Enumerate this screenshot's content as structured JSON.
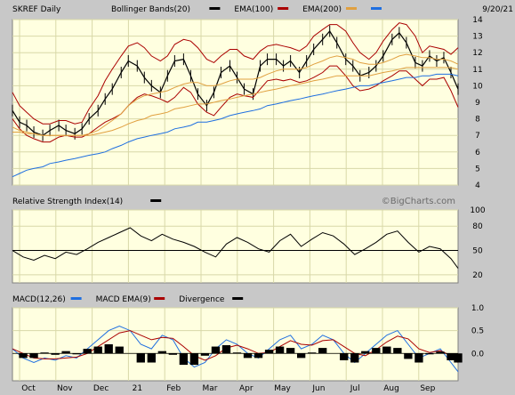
{
  "header": {
    "symbol": "SKREF Daily",
    "date": "9/20/21",
    "legend": [
      {
        "label": "Bollinger Bands(20)",
        "color": "#000000"
      },
      {
        "label": "EMA(100)",
        "color": "#aa0000"
      },
      {
        "label": "EMA(200)",
        "color": "#e0a040"
      },
      {
        "label": "",
        "color": "#1f6fe0"
      }
    ]
  },
  "watermark": "©BigCharts.com",
  "colors": {
    "plot_bg": "#ffffe0",
    "grid": "#d8d8a8",
    "price": "#000000",
    "bollinger": "#aa0000",
    "ema100": "#e0a040",
    "ema200": "#1f6fe0",
    "macd": "#1f6fe0",
    "macd_ema": "#aa0000",
    "divergence": "#000000"
  },
  "x_axis": {
    "labels": [
      "Oct",
      "Nov",
      "Dec",
      "21",
      "Feb",
      "Mar",
      "Apr",
      "May",
      "Jun",
      "Jul",
      "Aug",
      "Sep"
    ]
  },
  "chart_data": [
    {
      "type": "line",
      "panel": "price",
      "ylim": [
        4,
        14
      ],
      "yticks": [
        4,
        5,
        6,
        7,
        8,
        9,
        10,
        11,
        12,
        13,
        14
      ],
      "x": [
        0,
        4,
        8,
        12,
        17,
        21,
        26,
        30,
        35,
        39,
        43,
        48,
        52,
        56,
        61,
        65,
        70,
        74,
        78,
        83,
        87,
        91,
        96,
        100,
        104,
        109,
        113,
        117,
        122,
        126,
        130,
        135,
        139,
        143,
        148,
        152,
        156,
        161,
        165,
        169,
        174,
        178,
        182,
        187,
        191,
        195,
        200,
        204,
        208,
        213,
        217,
        221,
        226,
        230,
        234,
        238,
        242,
        246,
        250
      ],
      "series": [
        {
          "name": "",
          "values": [
            8.5,
            7.8,
            7.6,
            7.2,
            7.0,
            7.3,
            7.6,
            7.3,
            7.1,
            7.4,
            8.0,
            8.5,
            9.2,
            9.8,
            10.8,
            11.5,
            11.2,
            10.5,
            10.0,
            9.6,
            10.6,
            11.5,
            11.6,
            10.6,
            9.5,
            8.8,
            9.6,
            10.8,
            11.2,
            10.5,
            9.8,
            9.5,
            11.2,
            11.6,
            11.6,
            11.2,
            11.5,
            10.8,
            11.5,
            12.2,
            12.8,
            13.3,
            12.6,
            11.6,
            11.2,
            10.6,
            10.8,
            11.2,
            11.8,
            12.8,
            13.2,
            12.6,
            11.4,
            11.2,
            11.8,
            11.5,
            11.7,
            10.8,
            9.8
          ]
        },
        {
          "name": "",
          "values": [
            9.6,
            8.8,
            8.4,
            8.0,
            7.7,
            7.7,
            7.9,
            7.9,
            7.7,
            7.8,
            8.6,
            9.4,
            10.3,
            11.0,
            11.8,
            12.4,
            12.6,
            12.3,
            11.8,
            11.5,
            11.8,
            12.5,
            12.8,
            12.7,
            12.3,
            11.6,
            11.4,
            11.8,
            12.2,
            12.2,
            11.8,
            11.6,
            12.1,
            12.4,
            12.5,
            12.4,
            12.3,
            12.1,
            12.4,
            13.0,
            13.4,
            13.7,
            13.7,
            13.3,
            12.6,
            12.0,
            11.6,
            12.0,
            12.7,
            13.4,
            13.8,
            13.7,
            13.0,
            12.0,
            12.4,
            12.3,
            12.2,
            11.9,
            12.3
          ]
        },
        {
          "name": "",
          "values": [
            8.0,
            7.4,
            7.0,
            6.8,
            6.6,
            6.6,
            6.9,
            7.0,
            6.9,
            6.9,
            7.1,
            7.5,
            7.8,
            8.0,
            8.3,
            8.8,
            9.3,
            9.5,
            9.4,
            9.2,
            9.0,
            9.3,
            9.9,
            9.6,
            8.9,
            8.4,
            8.2,
            8.7,
            9.3,
            9.5,
            9.4,
            9.3,
            9.8,
            10.3,
            10.4,
            10.3,
            10.4,
            10.2,
            10.3,
            10.5,
            10.8,
            11.2,
            11.2,
            10.6,
            10.0,
            9.7,
            9.8,
            10.0,
            10.3,
            10.6,
            10.9,
            10.9,
            10.4,
            10.0,
            10.4,
            10.4,
            10.5,
            9.7,
            8.7
          ]
        },
        {
          "name": "",
          "values": [
            7.5,
            7.3,
            7.2,
            7.1,
            7.0,
            7.0,
            7.0,
            7.0,
            7.0,
            7.0,
            7.1,
            7.3,
            7.6,
            7.9,
            8.3,
            8.8,
            9.2,
            9.4,
            9.5,
            9.6,
            9.7,
            9.9,
            10.1,
            10.2,
            10.2,
            10.0,
            10.0,
            10.1,
            10.3,
            10.4,
            10.4,
            10.4,
            10.5,
            10.7,
            10.9,
            11.0,
            11.0,
            11.0,
            11.1,
            11.3,
            11.5,
            11.7,
            11.8,
            11.7,
            11.6,
            11.4,
            11.3,
            11.3,
            11.4,
            11.6,
            11.8,
            11.9,
            11.8,
            11.7,
            11.7,
            11.6,
            11.6,
            11.5,
            11.3
          ]
        },
        {
          "name": "",
          "values": [
            7.2,
            7.2,
            7.1,
            7.1,
            7.0,
            7.0,
            7.0,
            7.0,
            7.0,
            7.0,
            7.0,
            7.1,
            7.2,
            7.3,
            7.5,
            7.7,
            7.9,
            8.0,
            8.2,
            8.3,
            8.4,
            8.6,
            8.7,
            8.8,
            8.9,
            8.9,
            9.0,
            9.1,
            9.2,
            9.3,
            9.4,
            9.5,
            9.6,
            9.7,
            9.8,
            9.9,
            10.0,
            10.1,
            10.2,
            10.3,
            10.4,
            10.5,
            10.6,
            10.6,
            10.6,
            10.6,
            10.6,
            10.7,
            10.8,
            10.9,
            11.0,
            11.1,
            11.1,
            11.1,
            11.1,
            11.1,
            11.1,
            11.1,
            11.0
          ]
        },
        {
          "name": "",
          "values": [
            4.5,
            4.7,
            4.9,
            5.0,
            5.1,
            5.3,
            5.4,
            5.5,
            5.6,
            5.7,
            5.8,
            5.9,
            6.0,
            6.2,
            6.4,
            6.6,
            6.8,
            6.9,
            7.0,
            7.1,
            7.2,
            7.4,
            7.5,
            7.6,
            7.8,
            7.8,
            7.9,
            8.0,
            8.2,
            8.3,
            8.4,
            8.5,
            8.6,
            8.8,
            8.9,
            9.0,
            9.1,
            9.2,
            9.3,
            9.4,
            9.5,
            9.6,
            9.7,
            9.8,
            9.9,
            10.0,
            10.0,
            10.1,
            10.2,
            10.3,
            10.4,
            10.5,
            10.5,
            10.6,
            10.6,
            10.7,
            10.7,
            10.7,
            10.6
          ]
        }
      ]
    },
    {
      "type": "line",
      "panel": "rsi",
      "title": "Relative Strength Index(14)",
      "ylim": [
        10,
        100
      ],
      "yticks": [
        20,
        50,
        80,
        100
      ],
      "reference_line": 50,
      "x": [
        0,
        6,
        12,
        18,
        24,
        30,
        36,
        42,
        48,
        54,
        60,
        66,
        72,
        78,
        84,
        90,
        96,
        102,
        108,
        114,
        120,
        126,
        132,
        138,
        144,
        150,
        156,
        162,
        168,
        174,
        180,
        186,
        192,
        198,
        204,
        210,
        216,
        222,
        228,
        234,
        240,
        246,
        250
      ],
      "series": [
        {
          "name": "",
          "values": [
            50,
            42,
            38,
            44,
            40,
            48,
            45,
            52,
            60,
            66,
            72,
            78,
            68,
            62,
            70,
            64,
            60,
            55,
            48,
            42,
            58,
            66,
            60,
            52,
            48,
            62,
            70,
            55,
            64,
            72,
            68,
            58,
            45,
            52,
            60,
            70,
            74,
            60,
            48,
            55,
            52,
            40,
            28
          ]
        }
      ]
    },
    {
      "type": "line",
      "panel": "macd",
      "title": "",
      "ylim": [
        -0.6,
        1.0
      ],
      "yticks": [
        0.0,
        0.5,
        1.0
      ],
      "x": [
        0,
        6,
        12,
        18,
        24,
        30,
        36,
        42,
        48,
        54,
        60,
        66,
        72,
        78,
        84,
        90,
        96,
        102,
        108,
        114,
        120,
        126,
        132,
        138,
        144,
        150,
        156,
        162,
        168,
        174,
        180,
        186,
        192,
        198,
        204,
        210,
        216,
        222,
        228,
        234,
        240,
        246,
        250
      ],
      "series": [
        {
          "name": "",
          "values": [
            0.1,
            -0.1,
            -0.2,
            -0.1,
            -0.15,
            -0.05,
            -0.1,
            0.1,
            0.3,
            0.5,
            0.6,
            0.5,
            0.2,
            0.1,
            0.4,
            0.3,
            -0.1,
            -0.3,
            -0.2,
            0.1,
            0.3,
            0.2,
            0.0,
            -0.1,
            0.1,
            0.3,
            0.4,
            0.1,
            0.2,
            0.4,
            0.3,
            0.0,
            -0.2,
            0.0,
            0.2,
            0.4,
            0.5,
            0.2,
            -0.1,
            0.0,
            0.1,
            -0.2,
            -0.4
          ]
        },
        {
          "name": "",
          "values": [
            0.1,
            0.0,
            -0.1,
            -0.12,
            -0.12,
            -0.1,
            -0.08,
            0.0,
            0.15,
            0.3,
            0.45,
            0.5,
            0.4,
            0.3,
            0.35,
            0.33,
            0.15,
            -0.05,
            -0.15,
            -0.05,
            0.12,
            0.18,
            0.1,
            0.0,
            0.02,
            0.15,
            0.28,
            0.2,
            0.18,
            0.28,
            0.3,
            0.15,
            0.0,
            -0.05,
            0.08,
            0.25,
            0.38,
            0.32,
            0.1,
            0.02,
            0.06,
            -0.05,
            -0.2
          ]
        },
        {
          "name": "",
          "type": "bar",
          "values": [
            0.0,
            -0.1,
            -0.1,
            0.02,
            -0.03,
            0.05,
            -0.02,
            0.1,
            0.15,
            0.2,
            0.15,
            0.0,
            -0.2,
            -0.2,
            0.05,
            -0.03,
            -0.25,
            -0.25,
            -0.05,
            0.15,
            0.18,
            0.02,
            -0.1,
            -0.1,
            0.08,
            0.15,
            0.12,
            -0.1,
            0.02,
            0.12,
            0.0,
            -0.15,
            -0.2,
            0.05,
            0.12,
            0.15,
            0.12,
            -0.12,
            -0.2,
            -0.02,
            0.04,
            -0.15,
            -0.2
          ]
        }
      ]
    }
  ],
  "panel_legends": {
    "rsi": [
      {
        "label": "Relative Strength Index(14)",
        "color": "#000000"
      }
    ],
    "macd": [
      {
        "label": "MACD(12,26)",
        "color": "#1f6fe0"
      },
      {
        "label": "MACD EMA(9)",
        "color": "#aa0000"
      },
      {
        "label": "Divergence",
        "color": "#000000"
      }
    ]
  }
}
